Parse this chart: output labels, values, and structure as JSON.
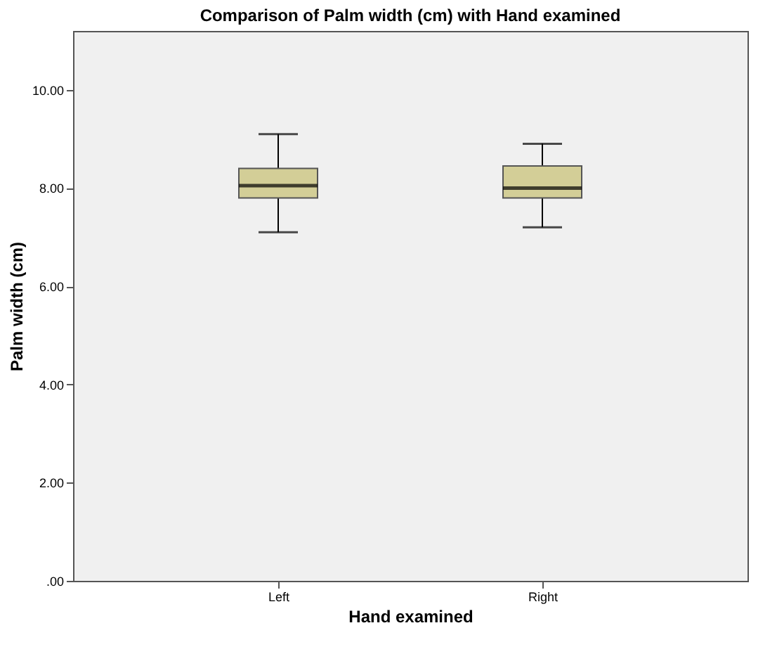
{
  "chart_data": {
    "type": "box",
    "title": "Comparison of Palm width (cm) with Hand examined",
    "xlabel": "Hand examined",
    "ylabel": "Palm width (cm)",
    "categories": [
      "Left",
      "Right"
    ],
    "color": "#d3ce97",
    "boxes": [
      {
        "low": 7.1,
        "q1": 7.8,
        "median": 8.05,
        "q3": 8.4,
        "high": 9.1
      },
      {
        "low": 7.2,
        "q1": 7.8,
        "median": 8.0,
        "q3": 8.45,
        "high": 8.9
      }
    ],
    "ylim": [
      0,
      11.2
    ],
    "yticks": [
      {
        "value": 0,
        "label": ".00"
      },
      {
        "value": 2,
        "label": "2.00"
      },
      {
        "value": 4,
        "label": "4.00"
      },
      {
        "value": 6,
        "label": "6.00"
      },
      {
        "value": 8,
        "label": "8.00"
      },
      {
        "value": 10,
        "label": "10.00"
      }
    ],
    "grid": false
  }
}
